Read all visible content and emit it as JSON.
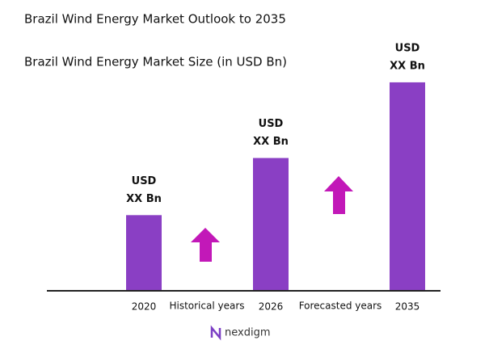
{
  "chart_data": {
    "type": "bar",
    "title": "Brazil Wind Energy Market Outlook to 2035",
    "subtitle": "Brazil Wind Energy Market Size (in USD Bn)",
    "categories": [
      "2020",
      "2026",
      "2035"
    ],
    "values": [
      93,
      164,
      258
    ],
    "value_labels": [
      [
        "USD",
        "XX Bn"
      ],
      [
        "USD",
        "XX Bn"
      ],
      [
        "USD",
        "XX Bn"
      ]
    ],
    "color": "#8a3fc4",
    "ylim": [
      0,
      280
    ],
    "annotations": [
      "Historical years",
      "Forecasted years"
    ]
  },
  "logo": "nexdigm"
}
